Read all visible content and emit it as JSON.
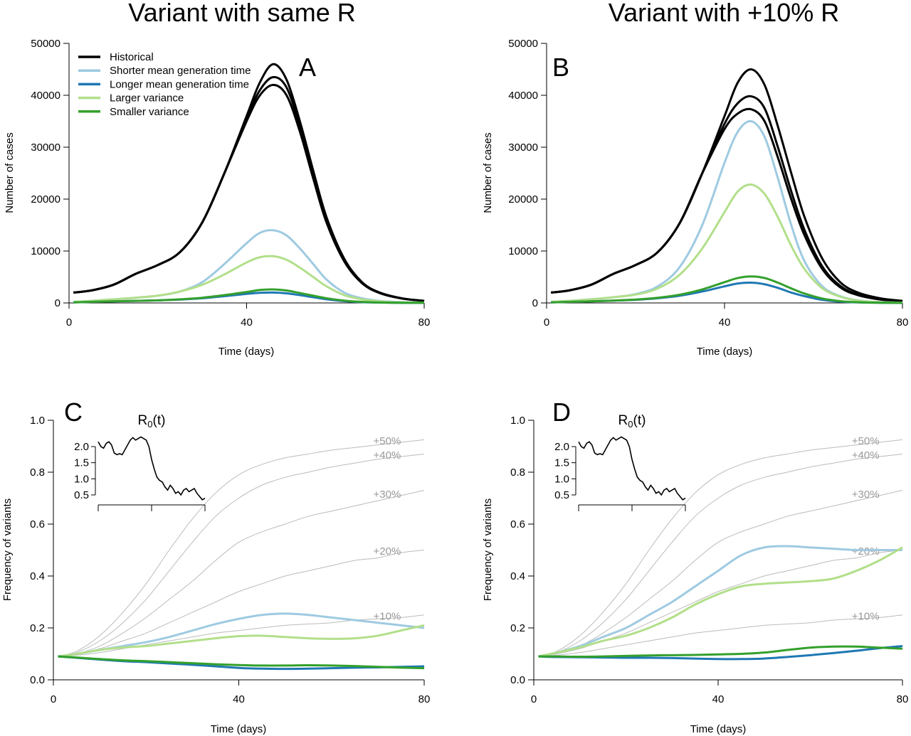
{
  "colors": {
    "Historical": "#000000",
    "Shorter mean generation time": "#9ecae1",
    "Longer mean generation time": "#1f78b4",
    "Larger variance": "#b2df8a",
    "Smaller variance": "#33a02c",
    "reference": "#bbbbbb",
    "reference_label": "#999999"
  },
  "titles": {
    "left": "Variant with same R",
    "right": "Variant with +10% R"
  },
  "legend": [
    "Historical",
    "Shorter mean generation time",
    "Longer mean generation time",
    "Larger variance",
    "Smaller variance"
  ],
  "chart_data": [
    {
      "panel": "A",
      "type": "line",
      "xlabel": "Time (days)",
      "ylabel": "Number of cases",
      "xlim": [
        0,
        80
      ],
      "ylim": [
        0,
        50000
      ],
      "xticks": [
        0,
        40,
        80
      ],
      "yticks": [
        0,
        10000,
        20000,
        30000,
        40000,
        50000
      ],
      "x": [
        1,
        5,
        10,
        15,
        20,
        25,
        30,
        35,
        40,
        43,
        46,
        49,
        52,
        55,
        58,
        62,
        66,
        70,
        75,
        80
      ],
      "series": [
        {
          "name": "Historical",
          "values": [
            2000,
            2400,
            3500,
            5600,
            7300,
            9800,
            15500,
            25000,
            36000,
            42500,
            46000,
            43000,
            35000,
            25500,
            16500,
            8500,
            4000,
            2000,
            900,
            400
          ]
        },
        {
          "name": "Historical",
          "values": [
            2000,
            2400,
            3500,
            5600,
            7300,
            9800,
            15500,
            25000,
            35500,
            41000,
            43500,
            41500,
            34000,
            25000,
            16000,
            8200,
            3900,
            1900,
            850,
            400
          ]
        },
        {
          "name": "Historical",
          "values": [
            2000,
            2400,
            3500,
            5600,
            7300,
            9800,
            15500,
            25000,
            35000,
            40000,
            42000,
            40000,
            33000,
            24000,
            15500,
            8000,
            3800,
            1900,
            850,
            400
          ]
        },
        {
          "name": "Shorter mean generation time",
          "values": [
            200,
            400,
            700,
            1000,
            1400,
            2200,
            4000,
            7500,
            11500,
            13500,
            14000,
            13000,
            10500,
            7500,
            4500,
            2000,
            900,
            400,
            150,
            50
          ]
        },
        {
          "name": "Larger variance",
          "values": [
            200,
            400,
            700,
            1000,
            1400,
            2200,
            3500,
            5500,
            7800,
            8800,
            9000,
            8300,
            6800,
            5000,
            3200,
            1500,
            700,
            300,
            120,
            50
          ]
        },
        {
          "name": "Longer mean generation time",
          "values": [
            100,
            200,
            300,
            400,
            500,
            650,
            900,
            1300,
            1750,
            1950,
            2000,
            1850,
            1500,
            1100,
            700,
            350,
            150,
            60,
            20,
            10
          ]
        },
        {
          "name": "Smaller variance",
          "values": [
            100,
            200,
            300,
            400,
            500,
            700,
            1000,
            1500,
            2100,
            2500,
            2600,
            2400,
            1900,
            1400,
            900,
            450,
            200,
            80,
            30,
            10
          ]
        }
      ]
    },
    {
      "panel": "B",
      "type": "line",
      "xlabel": "Time (days)",
      "ylabel": "Number of cases",
      "xlim": [
        0,
        80
      ],
      "ylim": [
        0,
        50000
      ],
      "xticks": [
        0,
        40,
        80
      ],
      "yticks": [
        0,
        10000,
        20000,
        30000,
        40000,
        50000
      ],
      "x": [
        1,
        5,
        10,
        15,
        20,
        25,
        30,
        35,
        40,
        43,
        46,
        49,
        52,
        55,
        58,
        62,
        66,
        70,
        75,
        80
      ],
      "series": [
        {
          "name": "Historical",
          "values": [
            2000,
            2400,
            3500,
            5600,
            7300,
            9800,
            15500,
            25000,
            36000,
            42500,
            45000,
            42000,
            34000,
            25000,
            16500,
            8500,
            4000,
            2000,
            900,
            400
          ]
        },
        {
          "name": "Historical",
          "values": [
            2000,
            2400,
            3500,
            5600,
            7300,
            9800,
            15500,
            25000,
            34500,
            38500,
            39800,
            37500,
            30000,
            21500,
            14000,
            7000,
            3300,
            1600,
            700,
            300
          ]
        },
        {
          "name": "Historical",
          "values": [
            2000,
            2400,
            3500,
            5600,
            7300,
            9800,
            15500,
            25000,
            33500,
            36500,
            37300,
            35000,
            28000,
            20000,
            13000,
            6500,
            3000,
            1500,
            650,
            300
          ]
        },
        {
          "name": "Shorter mean generation time",
          "values": [
            200,
            400,
            700,
            1100,
            1700,
            3200,
            7000,
            15000,
            27000,
            33000,
            35000,
            32000,
            24000,
            15000,
            8000,
            3200,
            1300,
            500,
            150,
            50
          ]
        },
        {
          "name": "Larger variance",
          "values": [
            200,
            400,
            700,
            1100,
            1600,
            2800,
            5500,
            10500,
            17500,
            21500,
            22800,
            21000,
            16500,
            11000,
            6500,
            2800,
            1200,
            450,
            150,
            50
          ]
        },
        {
          "name": "Longer mean generation time",
          "values": [
            100,
            200,
            300,
            450,
            600,
            900,
            1400,
            2200,
            3200,
            3750,
            3900,
            3600,
            2900,
            2000,
            1300,
            600,
            250,
            100,
            30,
            10
          ]
        },
        {
          "name": "Smaller variance",
          "values": [
            100,
            200,
            300,
            450,
            650,
            1000,
            1600,
            2600,
            4000,
            4800,
            5100,
            4800,
            3900,
            2800,
            1800,
            850,
            350,
            130,
            40,
            10
          ]
        }
      ]
    },
    {
      "panel": "C",
      "type": "line",
      "xlabel": "Time (days)",
      "ylabel": "Frequency of variants",
      "xlim": [
        0,
        80
      ],
      "ylim": [
        0,
        1
      ],
      "xticks": [
        0,
        40,
        80
      ],
      "yticks": [
        "0.0",
        "0.2",
        "0.4",
        "0.6",
        "0.8",
        "1.0"
      ],
      "x": [
        1,
        5,
        10,
        15,
        20,
        25,
        30,
        35,
        40,
        45,
        50,
        55,
        60,
        65,
        70,
        75,
        80
      ],
      "reference": [
        {
          "label": "+50%",
          "values": [
            0.09,
            0.11,
            0.17,
            0.26,
            0.37,
            0.5,
            0.62,
            0.72,
            0.79,
            0.83,
            0.855,
            0.87,
            0.885,
            0.895,
            0.905,
            0.915,
            0.925
          ]
        },
        {
          "label": "+40%",
          "values": [
            0.09,
            0.105,
            0.15,
            0.22,
            0.31,
            0.42,
            0.53,
            0.63,
            0.7,
            0.75,
            0.78,
            0.8,
            0.82,
            0.835,
            0.85,
            0.86,
            0.87
          ]
        },
        {
          "label": "+30%",
          "values": [
            0.09,
            0.1,
            0.13,
            0.18,
            0.24,
            0.31,
            0.38,
            0.46,
            0.53,
            0.57,
            0.6,
            0.63,
            0.65,
            0.67,
            0.69,
            0.71,
            0.73
          ]
        },
        {
          "label": "+20%",
          "values": [
            0.09,
            0.1,
            0.12,
            0.15,
            0.18,
            0.22,
            0.26,
            0.3,
            0.34,
            0.37,
            0.4,
            0.42,
            0.44,
            0.46,
            0.47,
            0.49,
            0.5
          ]
        },
        {
          "label": "+10%",
          "values": [
            0.09,
            0.095,
            0.105,
            0.12,
            0.135,
            0.15,
            0.165,
            0.18,
            0.19,
            0.2,
            0.21,
            0.215,
            0.22,
            0.23,
            0.235,
            0.24,
            0.25
          ]
        }
      ],
      "series": [
        {
          "name": "Shorter mean generation time",
          "values": [
            0.09,
            0.1,
            0.115,
            0.13,
            0.145,
            0.165,
            0.19,
            0.215,
            0.235,
            0.25,
            0.255,
            0.25,
            0.24,
            0.23,
            0.22,
            0.21,
            0.2
          ]
        },
        {
          "name": "Larger variance",
          "values": [
            0.09,
            0.1,
            0.115,
            0.125,
            0.13,
            0.14,
            0.15,
            0.16,
            0.168,
            0.17,
            0.165,
            0.16,
            0.158,
            0.16,
            0.17,
            0.19,
            0.21
          ]
        },
        {
          "name": "Longer mean generation time",
          "values": [
            0.09,
            0.085,
            0.078,
            0.072,
            0.068,
            0.063,
            0.058,
            0.052,
            0.046,
            0.043,
            0.042,
            0.043,
            0.045,
            0.047,
            0.048,
            0.05,
            0.052
          ]
        },
        {
          "name": "Smaller variance",
          "values": [
            0.09,
            0.086,
            0.08,
            0.075,
            0.072,
            0.068,
            0.064,
            0.06,
            0.057,
            0.055,
            0.055,
            0.056,
            0.055,
            0.053,
            0.05,
            0.047,
            0.045
          ]
        }
      ]
    },
    {
      "panel": "D",
      "type": "line",
      "xlabel": "Time (days)",
      "ylabel": "Frequency of variants",
      "xlim": [
        0,
        80
      ],
      "ylim": [
        0,
        1
      ],
      "xticks": [
        0,
        40,
        80
      ],
      "yticks": [
        "0.0",
        "0.2",
        "0.4",
        "0.6",
        "0.8",
        "1.0"
      ],
      "x": [
        1,
        5,
        10,
        15,
        20,
        25,
        30,
        35,
        40,
        45,
        50,
        55,
        60,
        65,
        70,
        75,
        80
      ],
      "reference": [
        {
          "label": "+50%",
          "values": [
            0.09,
            0.11,
            0.17,
            0.26,
            0.37,
            0.5,
            0.62,
            0.72,
            0.79,
            0.83,
            0.855,
            0.87,
            0.885,
            0.895,
            0.905,
            0.915,
            0.925
          ]
        },
        {
          "label": "+40%",
          "values": [
            0.09,
            0.105,
            0.15,
            0.22,
            0.31,
            0.42,
            0.53,
            0.63,
            0.7,
            0.75,
            0.78,
            0.8,
            0.82,
            0.835,
            0.85,
            0.86,
            0.87
          ]
        },
        {
          "label": "+30%",
          "values": [
            0.09,
            0.1,
            0.13,
            0.18,
            0.24,
            0.31,
            0.38,
            0.46,
            0.53,
            0.57,
            0.6,
            0.63,
            0.65,
            0.67,
            0.69,
            0.71,
            0.73
          ]
        },
        {
          "label": "+20%",
          "values": [
            0.09,
            0.1,
            0.12,
            0.15,
            0.18,
            0.22,
            0.26,
            0.3,
            0.34,
            0.37,
            0.4,
            0.42,
            0.44,
            0.46,
            0.47,
            0.49,
            0.5
          ]
        },
        {
          "label": "+10%",
          "values": [
            0.09,
            0.095,
            0.105,
            0.12,
            0.135,
            0.15,
            0.165,
            0.18,
            0.19,
            0.2,
            0.21,
            0.215,
            0.22,
            0.23,
            0.235,
            0.24,
            0.25
          ]
        }
      ],
      "series": [
        {
          "name": "Shorter mean generation time",
          "values": [
            0.09,
            0.105,
            0.13,
            0.165,
            0.2,
            0.25,
            0.3,
            0.36,
            0.42,
            0.48,
            0.51,
            0.515,
            0.51,
            0.505,
            0.5,
            0.5,
            0.5
          ]
        },
        {
          "name": "Larger variance",
          "values": [
            0.09,
            0.105,
            0.125,
            0.15,
            0.17,
            0.2,
            0.24,
            0.29,
            0.33,
            0.36,
            0.37,
            0.375,
            0.38,
            0.39,
            0.42,
            0.46,
            0.51
          ]
        },
        {
          "name": "Longer mean generation time",
          "values": [
            0.09,
            0.088,
            0.087,
            0.086,
            0.085,
            0.085,
            0.084,
            0.082,
            0.08,
            0.08,
            0.082,
            0.088,
            0.095,
            0.103,
            0.112,
            0.122,
            0.13
          ]
        },
        {
          "name": "Smaller variance",
          "values": [
            0.09,
            0.09,
            0.089,
            0.09,
            0.092,
            0.094,
            0.095,
            0.096,
            0.098,
            0.1,
            0.105,
            0.115,
            0.124,
            0.128,
            0.128,
            0.124,
            0.12
          ]
        }
      ]
    }
  ],
  "inset": {
    "title": "R0(t)",
    "title_main": "R",
    "title_sub": "0",
    "title_rest": "(t)",
    "yticks": [
      "0.5",
      "1.0",
      "1.5",
      "2.0"
    ],
    "xlim": [
      0,
      80
    ],
    "ylim": [
      0.35,
      2.35
    ],
    "x_step": 2,
    "values": [
      2.15,
      2.0,
      1.95,
      2.1,
      2.15,
      2.05,
      1.8,
      1.75,
      1.78,
      1.75,
      1.9,
      2.05,
      2.2,
      2.28,
      2.2,
      2.25,
      2.3,
      2.25,
      2.2,
      2.0,
      1.6,
      1.3,
      1.05,
      0.95,
      0.9,
      0.75,
      0.65,
      0.8,
      0.7,
      0.55,
      0.6,
      0.5,
      0.65,
      0.7,
      0.6,
      0.65,
      0.7,
      0.55,
      0.45,
      0.35,
      0.4
    ]
  }
}
